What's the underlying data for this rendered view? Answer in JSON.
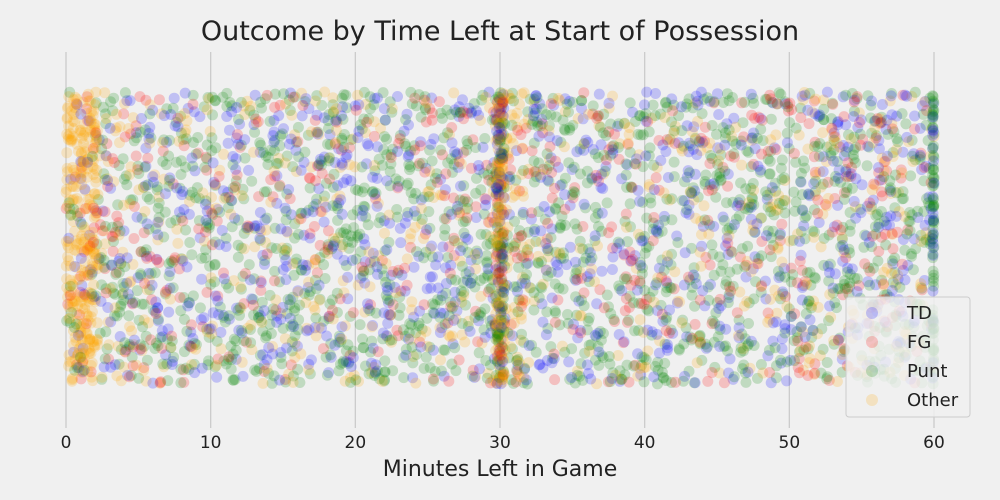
{
  "chart_data": {
    "type": "scatter",
    "title": "Outcome by Time Left at Start of Possession",
    "xlabel": "Minutes Left in Game",
    "ylabel": "",
    "xlim": [
      0,
      60
    ],
    "ylim": [
      0,
      1
    ],
    "xticks": [
      0,
      10,
      20,
      30,
      40,
      50,
      60
    ],
    "y_axis_visible": false,
    "grid": "vertical",
    "legend_position": "bottom-right",
    "point_alpha": 0.2,
    "series": [
      {
        "name": "TD",
        "color": "#0000ff"
      },
      {
        "name": "FG",
        "color": "#ff0000"
      },
      {
        "name": "Punt",
        "color": "#008000"
      },
      {
        "name": "Other",
        "color": "#ffa500"
      }
    ]
  },
  "colors": {
    "background": "#f0f0f0",
    "grid": "#cbcbcb"
  }
}
